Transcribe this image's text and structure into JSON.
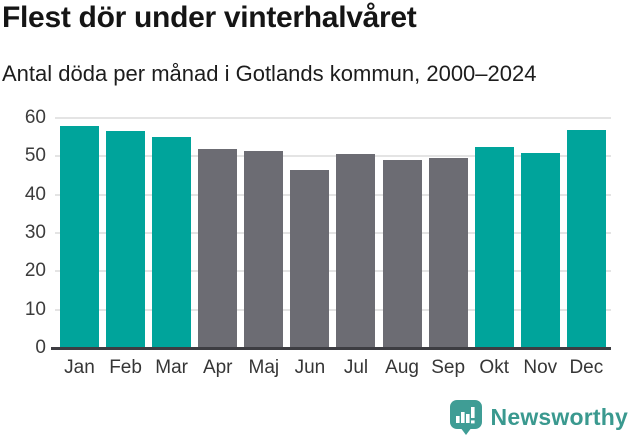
{
  "header": {
    "title": "Flest dör under vinterhalvåret",
    "subtitle": "Antal döda per månad i Gotlands kommun, 2000–2024"
  },
  "chart_data": {
    "type": "bar",
    "title": "Flest dör under vinterhalvåret",
    "subtitle": "Antal döda per månad i Gotlands kommun, 2000–2024",
    "categories": [
      "Jan",
      "Feb",
      "Mar",
      "Apr",
      "Maj",
      "Jun",
      "Jul",
      "Aug",
      "Sep",
      "Okt",
      "Nov",
      "Dec"
    ],
    "values": [
      58,
      56.5,
      55,
      52,
      51.5,
      46.5,
      50.5,
      49,
      49.5,
      52.5,
      51,
      57
    ],
    "bar_colors": [
      "teal",
      "teal",
      "teal",
      "gray",
      "gray",
      "gray",
      "gray",
      "gray",
      "gray",
      "teal",
      "teal",
      "teal"
    ],
    "colors": {
      "teal": "#00a49b",
      "gray": "#6c6c73"
    },
    "highlighted_months": [
      "Jan",
      "Feb",
      "Mar",
      "Okt",
      "Nov",
      "Dec"
    ],
    "xlabel": "",
    "ylabel": "",
    "ylim": [
      0,
      60
    ],
    "yticks": [
      0,
      10,
      20,
      30,
      40,
      50,
      60
    ],
    "grid": "horizontal",
    "legend": "none"
  },
  "footer": {
    "brand": "Newsworthy",
    "brand_color": "#3a998f",
    "logo_icon": "bar-chart-speech-bubble-icon",
    "logo_color": "#3f9d95"
  }
}
